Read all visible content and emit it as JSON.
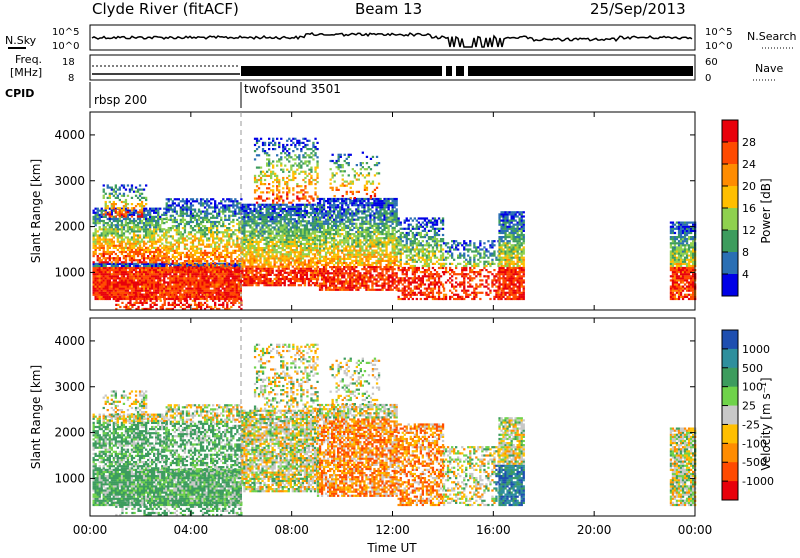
{
  "header": {
    "station": "Clyde River (fitACF)",
    "beam": "Beam 13",
    "date": "25/Sep/2013"
  },
  "top_panels": {
    "nsky_label": "N.Sky",
    "nsky_ticks": [
      "10^5",
      "10^0"
    ],
    "nsearch_label": "N.Search",
    "nsearch_ticks": [
      "10^5",
      "10^0"
    ],
    "freq_label_line1": "Freq.",
    "freq_label_line2": "[MHz]",
    "freq_ticks": [
      "18",
      "8"
    ],
    "nave_label": "Nave",
    "nave_ticks": [
      "60",
      "0"
    ],
    "cpid_label": "CPID",
    "cpid_segments": [
      {
        "name": "rbsp 200",
        "start_hour": 0,
        "end_hour": 6
      },
      {
        "name": "twofsound 3501",
        "start_hour": 6,
        "end_hour": 24
      }
    ]
  },
  "chart_data": [
    {
      "type": "heatmap",
      "parameter": "power",
      "ylabel": "Slant Range [km]",
      "xlabel": "",
      "x_range_hours": [
        0,
        24
      ],
      "ylim": [
        180,
        4500
      ],
      "yticks": [
        "4000",
        "3000",
        "2000",
        "1000"
      ],
      "xticks": [
        "00:00",
        "04:00",
        "08:00",
        "12:00",
        "16:00",
        "20:00",
        "00:00"
      ],
      "colorbar": {
        "label": "Power [dB]",
        "ticks": [
          "28",
          "24",
          "20",
          "16",
          "12",
          "8",
          "4"
        ],
        "colors": [
          "#e8000b",
          "#ff4a00",
          "#ff8c00",
          "#ffbf00",
          "#8fd14f",
          "#3d9c5e",
          "#2a6fb4",
          "#0000e6"
        ]
      }
    },
    {
      "type": "heatmap",
      "parameter": "velocity",
      "ylabel": "Slant Range [km]",
      "xlabel": "Time UT",
      "x_range_hours": [
        0,
        24
      ],
      "ylim": [
        180,
        4500
      ],
      "yticks": [
        "4000",
        "3000",
        "2000",
        "1000"
      ],
      "xticks": [
        "00:00",
        "04:00",
        "08:00",
        "12:00",
        "16:00",
        "20:00",
        "00:00"
      ],
      "colorbar": {
        "label": "Velocity [m s⁻¹]",
        "ticks": [
          "1000",
          "500",
          "100",
          "25",
          "-25",
          "-100",
          "-500",
          "-1000"
        ],
        "colors": [
          "#1f4fb0",
          "#2f8f9d",
          "#3d9c5e",
          "#6fd34a",
          "#c8c8c8",
          "#ffbf00",
          "#ff8c00",
          "#ff4a00",
          "#e8000b"
        ]
      }
    }
  ]
}
